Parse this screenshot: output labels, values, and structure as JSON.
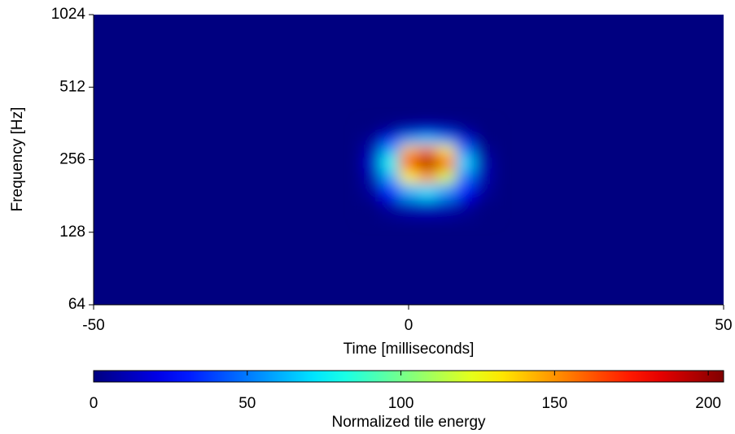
{
  "chart_data": {
    "type": "heatmap",
    "xlabel": "Time [milliseconds]",
    "ylabel": "Frequency [Hz]",
    "xlim": [
      -50,
      50
    ],
    "xticks": [
      -50,
      0,
      50
    ],
    "ylim": [
      64,
      1024
    ],
    "yticks": [
      64,
      128,
      256,
      512,
      1024
    ],
    "log_y": true,
    "x": [
      -6,
      -3,
      0,
      3,
      6,
      9,
      12
    ],
    "y": [
      160,
      190,
      220,
      250,
      280,
      310,
      340
    ],
    "z": [
      [
        0,
        5,
        10,
        12,
        10,
        5,
        0
      ],
      [
        5,
        30,
        60,
        70,
        55,
        25,
        5
      ],
      [
        10,
        60,
        130,
        150,
        120,
        50,
        10
      ],
      [
        15,
        80,
        180,
        200,
        170,
        70,
        10
      ],
      [
        10,
        60,
        140,
        160,
        130,
        50,
        5
      ],
      [
        5,
        30,
        60,
        70,
        55,
        20,
        0
      ],
      [
        0,
        5,
        15,
        20,
        15,
        5,
        0
      ]
    ],
    "colormap": "jet",
    "colorbar_label": "Normalized tile energy",
    "clim": [
      0,
      205
    ],
    "cticks": [
      0,
      50,
      100,
      150,
      200
    ]
  }
}
